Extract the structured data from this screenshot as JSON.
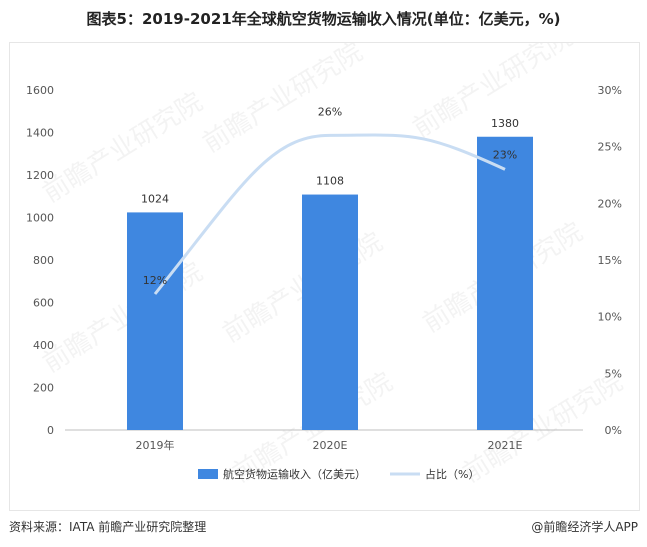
{
  "title": "图表5：2019-2021年全球航空货物运输收入情况(单位：亿美元，%)",
  "source": "资料来源：IATA  前瞻产业研究院整理",
  "brand": "@前瞻经济学人APP",
  "watermark": "前瞻产业研究院",
  "colors": {
    "bar": "#3f87e0",
    "line": "#c9ddf3"
  },
  "chart_data": {
    "type": "bar",
    "categories": [
      "2019年",
      "2020E",
      "2021E"
    ],
    "series": [
      {
        "name": "航空货物运输收入（亿美元）",
        "type": "bar",
        "axis": "left",
        "values": [
          1024,
          1108,
          1380
        ],
        "labels": [
          "1024",
          "1108",
          "1380"
        ]
      },
      {
        "name": "占比（%）",
        "type": "line",
        "axis": "right",
        "values": [
          12,
          26,
          23
        ],
        "labels": [
          "12%",
          "26%",
          "23%"
        ]
      }
    ],
    "y_left": {
      "min": 0,
      "max": 1600,
      "ticks": [
        "0",
        "200",
        "400",
        "600",
        "800",
        "1000",
        "1200",
        "1400",
        "1600"
      ]
    },
    "y_right": {
      "min": 0,
      "max": 30,
      "ticks": [
        "0%",
        "5%",
        "10%",
        "15%",
        "20%",
        "25%",
        "30%"
      ]
    },
    "grid": false,
    "legend": "bottom"
  }
}
